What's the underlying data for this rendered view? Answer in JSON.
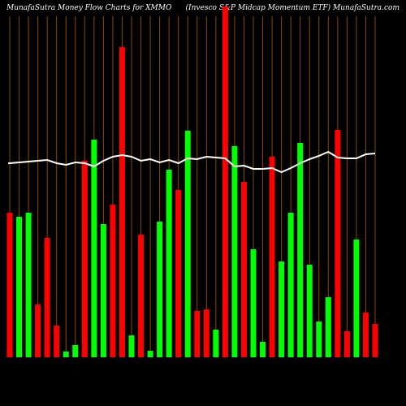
{
  "chart_data": {
    "type": "bar",
    "title": "MunafaSutra  Money Flow  Charts for XMMO",
    "subtitle": "(Invesco  S&P Midcap Momentum ETF) MunafaSutra.com",
    "values": [
      178,
      173,
      178,
      65,
      147,
      39,
      7,
      15,
      242,
      268,
      164,
      188,
      382,
      27,
      151,
      8,
      167,
      231,
      206,
      279,
      57,
      59,
      34,
      432,
      260,
      216,
      133,
      19,
      247,
      118,
      178,
      264,
      114,
      44,
      74,
      280,
      32,
      145,
      55,
      41
    ],
    "colors": [
      "#ff0000",
      "#00ff00",
      "#00ff00",
      "#ff0000",
      "#ff0000",
      "#ff0000",
      "#00ff00",
      "#00ff00",
      "#ff0000",
      "#00ff00",
      "#00ff00",
      "#ff0000",
      "#ff0000",
      "#00ff00",
      "#ff0000",
      "#00ff00",
      "#00ff00",
      "#00ff00",
      "#ff0000",
      "#00ff00",
      "#ff0000",
      "#ff0000",
      "#00ff00",
      "#ff0000",
      "#00ff00",
      "#ff0000",
      "#00ff00",
      "#00ff00",
      "#ff0000",
      "#00ff00",
      "#00ff00",
      "#00ff00",
      "#00ff00",
      "#00ff00",
      "#00ff00",
      "#ff0000",
      "#ff0000",
      "#00ff00",
      "#ff0000",
      "#ff0000"
    ],
    "line": {
      "color": "#ffffff",
      "values": [
        239,
        240,
        241,
        242,
        243,
        239,
        237,
        240,
        239,
        235,
        242,
        247,
        249,
        247,
        242,
        244,
        240,
        243,
        239,
        245,
        244,
        247,
        246,
        245,
        235,
        236,
        232,
        232,
        233,
        228,
        233,
        239,
        244,
        248,
        253,
        246,
        245,
        245,
        250,
        251
      ]
    }
  }
}
